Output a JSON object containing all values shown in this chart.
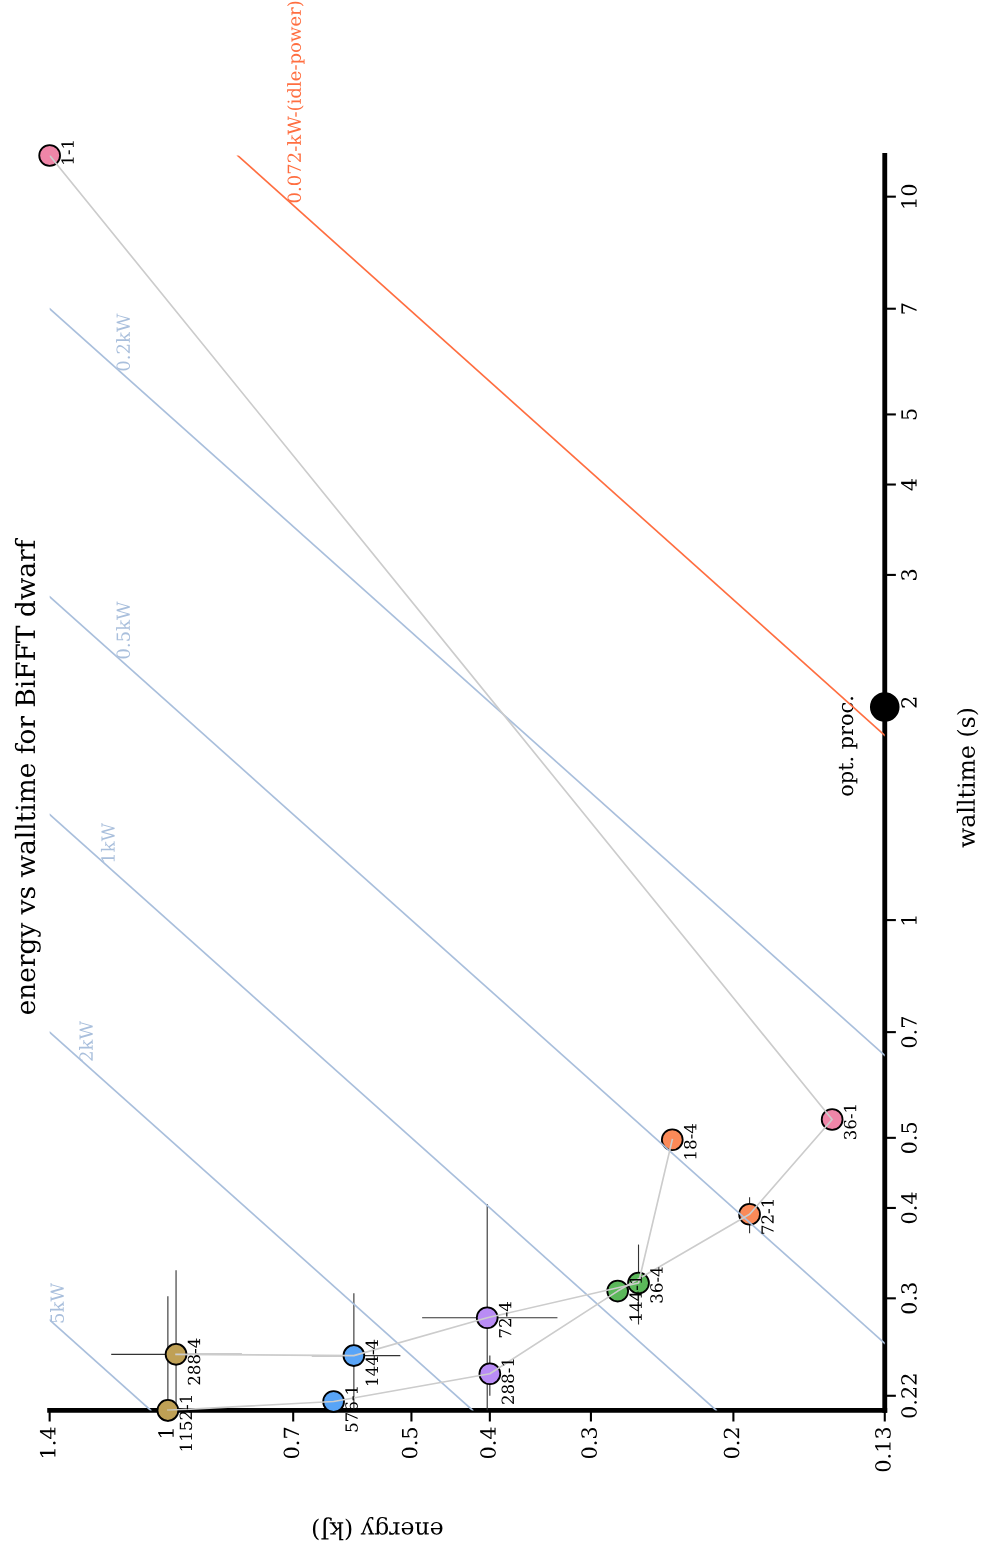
{
  "chart_data": {
    "type": "scatter",
    "title": "energy vs walltime for BiFFT dwarf",
    "xlabel": "energy (kJ)",
    "ylabel": "walltime (s)",
    "log": "xy",
    "xlim": [
      1.4,
      0.13
    ],
    "ylim": [
      0.21,
      11.4
    ],
    "xticks": [
      0.13,
      0.2,
      0.3,
      0.4,
      0.5,
      0.7,
      1,
      1.4
    ],
    "yticks": [
      0.22,
      0.3,
      0.4,
      0.5,
      0.7,
      1,
      2,
      3,
      4,
      5,
      7,
      10
    ],
    "grid": false,
    "legend": false,
    "marker": "circle",
    "series": [
      {
        "type": "line",
        "marker": "none",
        "color": "#a9bfdc",
        "name": "5kW",
        "x": [
          1.05,
          1.4
        ],
        "values": [
          0.21,
          0.28
        ]
      },
      {
        "type": "line",
        "marker": "none",
        "color": "#a9bfdc",
        "name": "2kW",
        "x": [
          0.42,
          1.4
        ],
        "values": [
          0.21,
          0.7
        ]
      },
      {
        "type": "line",
        "marker": "none",
        "color": "#a9bfdc",
        "name": "1kW",
        "x": [
          0.21,
          1.4
        ],
        "values": [
          0.21,
          1.4
        ]
      },
      {
        "type": "line",
        "marker": "none",
        "color": "#a9bfdc",
        "name": "0.5kW",
        "x": [
          0.13,
          1.4
        ],
        "values": [
          0.26,
          2.8
        ]
      },
      {
        "type": "line",
        "marker": "none",
        "color": "#a9bfdc",
        "name": "0.2kW",
        "x": [
          0.13,
          1.4
        ],
        "values": [
          0.65,
          7
        ]
      },
      {
        "type": "line",
        "marker": "none",
        "color": "#ff6e40",
        "name": "0.072-kW-(idle-power)",
        "x": [
          0.13,
          0.82
        ],
        "values": [
          1.8,
          11.4
        ]
      },
      {
        "type": "line",
        "marker": "none",
        "color": "#cccccc",
        "x": [
          1.0,
          0.624,
          0.4,
          0.278,
          0.191,
          0.151,
          1.4
        ],
        "values": [
          0.21,
          0.216,
          0.236,
          0.307,
          0.392,
          0.53,
          11.4
        ]
      },
      {
        "type": "line",
        "marker": "none",
        "color": "#cccccc",
        "x": [
          0.977,
          0.589,
          0.403,
          0.262,
          0.238
        ],
        "values": [
          0.251,
          0.25,
          0.282,
          0.315,
          0.497
        ]
      },
      {
        "x": [
          1.4,
          0.151,
          0.191,
          0.238,
          0.278,
          0.262,
          0.403,
          0.4,
          0.589,
          0.624,
          0.977,
          1.0
        ],
        "values": [
          11.4,
          0.53,
          0.392,
          0.497,
          0.307,
          0.315,
          0.282,
          0.236,
          0.25,
          0.216,
          0.251,
          0.21
        ],
        "colors": [
          "#ef86a8",
          "#ef86a8",
          "#fb8a58",
          "#fb8a58",
          "#5bb85a",
          "#5bb85a",
          "#b98cf5",
          "#b98cf5",
          "#58a4f7",
          "#58a4f7",
          "#bfa055",
          "#bfa055"
        ],
        "xerrors": [
          null,
          null,
          null,
          null,
          null,
          null,
          [
            0.33,
            0.485
          ],
          null,
          [
            0.516,
            0.664
          ],
          null,
          [
            0.81,
            1.175
          ],
          null
        ],
        "errors": [
          null,
          null,
          [
            0.369,
            0.414
          ],
          null,
          null,
          [
            0.276,
            0.356
          ],
          [
            0.21,
            0.405
          ],
          [
            0.22,
            0.25
          ],
          [
            0.21,
            0.305
          ],
          null,
          [
            0.21,
            0.328
          ],
          [
            0.21,
            0.302
          ]
        ]
      },
      {
        "name": "opt. proc.",
        "color": "#000000",
        "x": [
          0.13
        ],
        "values": [
          1.97
        ]
      }
    ],
    "annotations": [
      {
        "text": "1-1",
        "x": 1.4,
        "y": 11.4
      },
      {
        "text": "36-1",
        "x": 0.151,
        "y": 0.53
      },
      {
        "text": "72-1",
        "x": 0.191,
        "y": 0.392
      },
      {
        "text": "18-4",
        "x": 0.238,
        "y": 0.497
      },
      {
        "text": "144-1",
        "x": 0.278,
        "y": 0.307
      },
      {
        "text": "36-4",
        "x": 0.262,
        "y": 0.315
      },
      {
        "text": "72-4",
        "x": 0.403,
        "y": 0.282
      },
      {
        "text": "288-1",
        "x": 0.4,
        "y": 0.236
      },
      {
        "text": "144-4",
        "x": 0.589,
        "y": 0.25
      },
      {
        "text": "576-1",
        "x": 0.624,
        "y": 0.216
      },
      {
        "text": "288-4",
        "x": 0.977,
        "y": 0.251
      },
      {
        "text": "1152-1",
        "x": 1.0,
        "y": 0.21
      }
    ]
  }
}
